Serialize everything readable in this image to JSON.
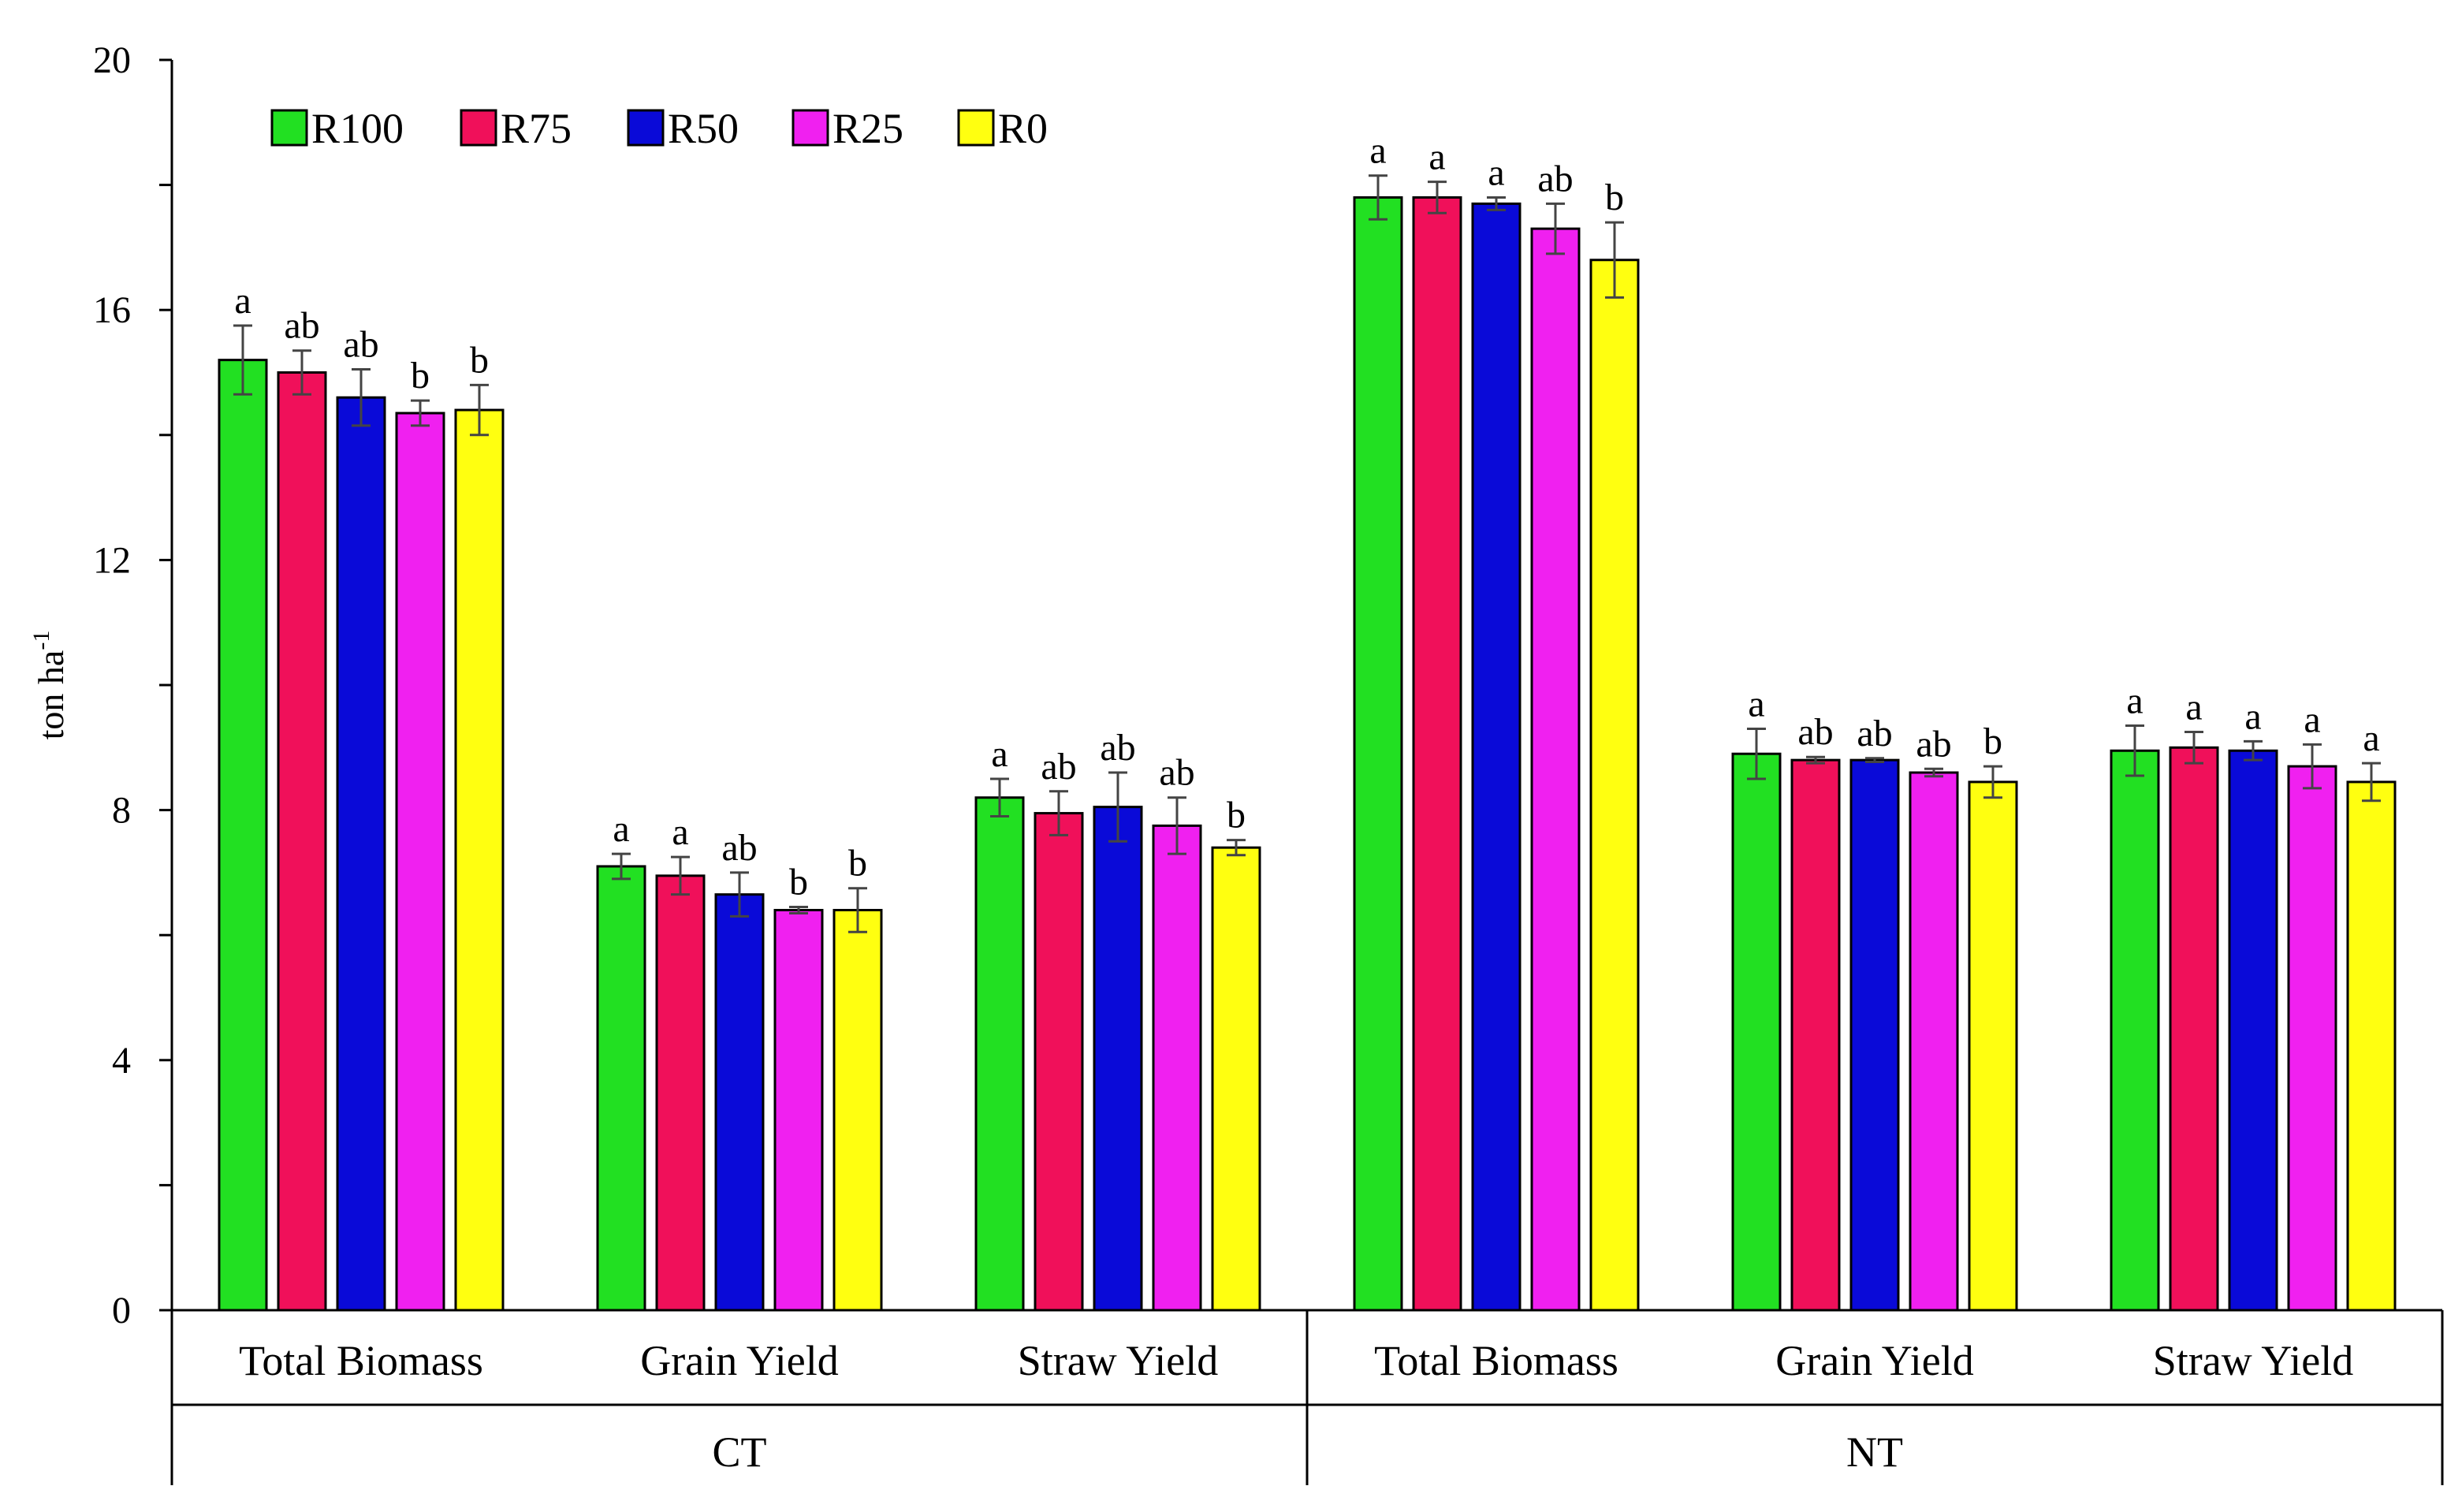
{
  "chart_data": {
    "type": "bar",
    "title": "",
    "ylabel": "ton ha",
    "ylabel_superscript": "-1",
    "ylim": [
      0,
      20
    ],
    "yticks": [
      "0",
      "4",
      "8",
      "12",
      "16",
      "20"
    ],
    "legend_position": "top-left",
    "categories": [
      "Total Biomass",
      "Grain Yield",
      "Straw Yield",
      "Total Biomass",
      "Grain Yield",
      "Straw Yield"
    ],
    "groups": [
      {
        "label": "CT",
        "categories": [
          "Total Biomass",
          "Grain Yield",
          "Straw Yield"
        ]
      },
      {
        "label": "NT",
        "categories": [
          "Total Biomass",
          "Grain Yield",
          "Straw Yield"
        ]
      }
    ],
    "series": [
      {
        "name": "R100",
        "color": "#22e022",
        "values": [
          15.2,
          7.1,
          8.2,
          17.8,
          8.9,
          8.95
        ],
        "errors": [
          0.55,
          0.2,
          0.3,
          0.35,
          0.4,
          0.4
        ],
        "sig": [
          "a",
          "a",
          "a",
          "a",
          "a",
          "a"
        ]
      },
      {
        "name": "R75",
        "color": "#f0105a",
        "values": [
          15.0,
          6.95,
          7.95,
          17.8,
          8.8,
          9.0
        ],
        "errors": [
          0.35,
          0.3,
          0.35,
          0.25,
          0.05,
          0.25
        ],
        "sig": [
          "ab",
          "a",
          "ab",
          "a",
          "ab",
          "a"
        ]
      },
      {
        "name": "R50",
        "color": "#0a0ad8",
        "values": [
          14.6,
          6.65,
          8.05,
          17.7,
          8.8,
          8.95
        ],
        "errors": [
          0.45,
          0.35,
          0.55,
          0.1,
          0.03,
          0.15
        ],
        "sig": [
          "ab",
          "ab",
          "ab",
          "a",
          "ab",
          "a"
        ]
      },
      {
        "name": "R25",
        "color": "#f020f0",
        "values": [
          14.35,
          6.4,
          7.75,
          17.3,
          8.6,
          8.7
        ],
        "errors": [
          0.2,
          0.05,
          0.45,
          0.4,
          0.06,
          0.35
        ],
        "sig": [
          "b",
          "b",
          "ab",
          "ab",
          "ab",
          "a"
        ]
      },
      {
        "name": "R0",
        "color": "#ffff10",
        "values": [
          14.4,
          6.4,
          7.4,
          16.8,
          8.45,
          8.45
        ],
        "errors": [
          0.4,
          0.35,
          0.12,
          0.6,
          0.25,
          0.3
        ],
        "sig": [
          "b",
          "b",
          "b",
          "b",
          "b",
          "a"
        ]
      }
    ]
  }
}
